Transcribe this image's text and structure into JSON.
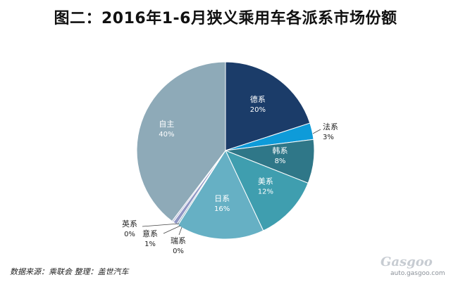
{
  "title": "图二：2016年1-6月狭义乘用车各派系市场份额",
  "source": "数据来源：乘联会  整理：盖世汽车",
  "watermark": {
    "name": "Gasgoo",
    "url": "auto.gasgoo.com"
  },
  "chart_data": {
    "type": "pie",
    "title": "图二：2016年1-6月狭义乘用车各派系市场份额",
    "slices": [
      {
        "label": "德系",
        "value": 20,
        "display": "20%",
        "color": "#1b3c69"
      },
      {
        "label": "法系",
        "value": 3,
        "display": "3%",
        "color": "#0e9bd9"
      },
      {
        "label": "韩系",
        "value": 8,
        "display": "8%",
        "color": "#2f7788"
      },
      {
        "label": "美系",
        "value": 12,
        "display": "12%",
        "color": "#3f9eaf"
      },
      {
        "label": "日系",
        "value": 16,
        "display": "16%",
        "color": "#66b0c4"
      },
      {
        "label": "瑞系",
        "value": 0.3,
        "display": "0%",
        "color": "#9ab8c8"
      },
      {
        "label": "意系",
        "value": 0.7,
        "display": "1%",
        "color": "#8f96c4"
      },
      {
        "label": "英系",
        "value": 0.3,
        "display": "0%",
        "color": "#b9bcd8"
      },
      {
        "label": "自主",
        "value": 39.7,
        "display": "40%",
        "color": "#8eaab8"
      }
    ]
  }
}
